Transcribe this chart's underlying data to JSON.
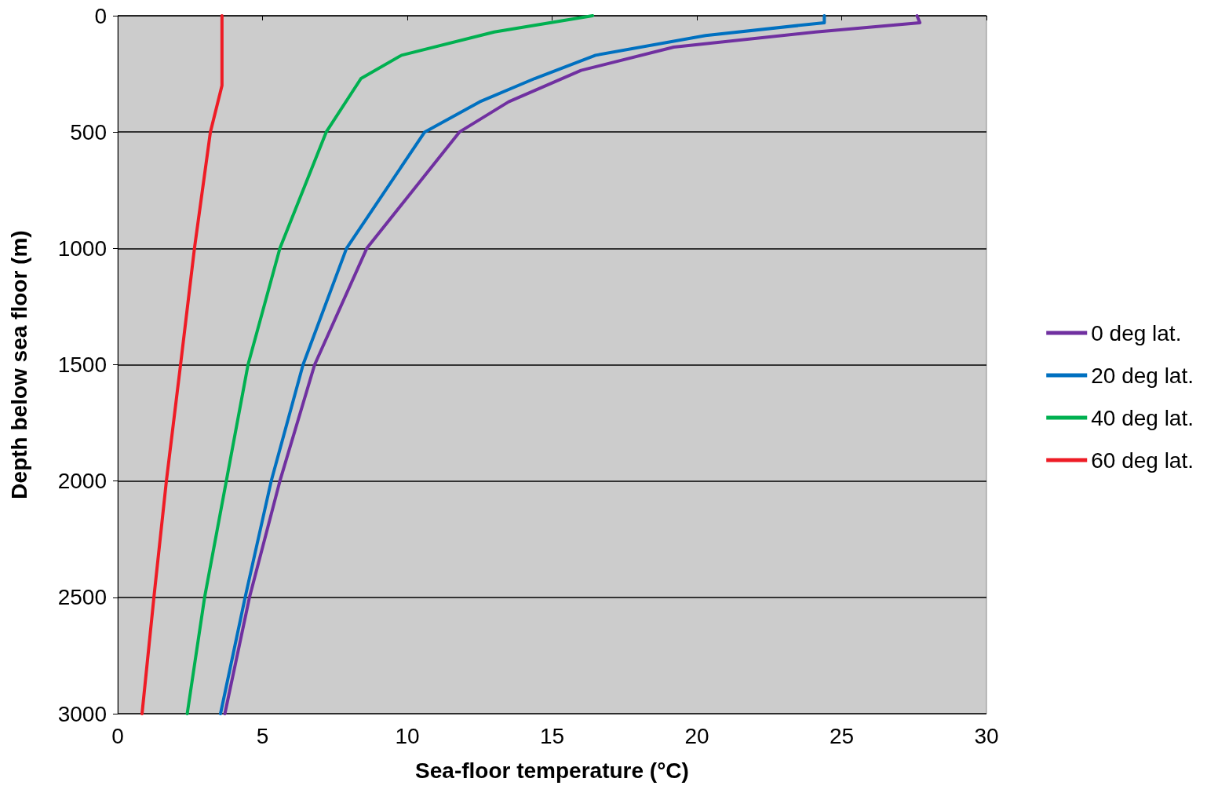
{
  "chart_data": {
    "type": "line",
    "xlabel": "Sea-floor temperature (°C)",
    "ylabel": "Depth below sea floor (m)",
    "xlim": [
      0,
      30
    ],
    "xticks": [
      0,
      5,
      10,
      15,
      20,
      25,
      30
    ],
    "ylim": [
      3000,
      0
    ],
    "yticks": [
      0,
      500,
      1000,
      1500,
      2000,
      2500,
      3000
    ],
    "grid": "y",
    "legend": "right",
    "marker": "none",
    "line_style": "solid",
    "series": [
      {
        "name": "0 deg lat.",
        "color": "#7030a0",
        "x": [
          27.6,
          27.7,
          24.1,
          19.2,
          16.0,
          13.5,
          11.8,
          8.6,
          6.8,
          5.6,
          4.55,
          3.7
        ],
        "values": [
          0,
          30,
          70,
          135,
          235,
          370,
          500,
          1000,
          1500,
          2000,
          2500,
          3000
        ]
      },
      {
        "name": "20 deg lat.",
        "color": "#0070c0",
        "x": [
          24.4,
          24.4,
          20.3,
          16.5,
          14.4,
          12.5,
          10.6,
          7.9,
          6.4,
          5.3,
          4.4,
          3.55
        ],
        "values": [
          0,
          30,
          85,
          170,
          270,
          370,
          500,
          1000,
          1500,
          2000,
          2500,
          3000
        ]
      },
      {
        "name": "40 deg lat.",
        "color": "#00b050",
        "x": [
          16.4,
          13.0,
          9.8,
          8.4,
          7.2,
          5.6,
          4.5,
          3.75,
          3.0,
          2.4
        ],
        "values": [
          0,
          70,
          170,
          270,
          500,
          1000,
          1500,
          2000,
          2500,
          3000
        ]
      },
      {
        "name": "60 deg lat.",
        "color": "#ee1c25",
        "x": [
          3.6,
          3.6,
          3.2,
          2.65,
          2.17,
          1.68,
          1.25,
          0.84
        ],
        "values": [
          0,
          300,
          500,
          1000,
          1500,
          2000,
          2500,
          3000
        ]
      }
    ]
  }
}
